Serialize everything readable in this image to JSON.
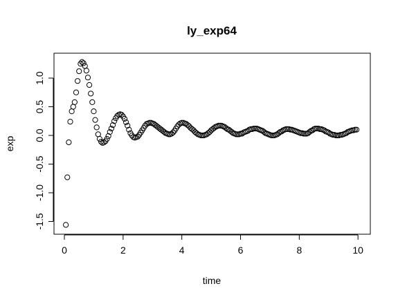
{
  "chart_data": {
    "type": "scatter",
    "title": "ly_exp64",
    "x_label": "time",
    "y_label": "exp",
    "xlim": [
      -0.354,
      10.42
    ],
    "ylim": [
      -1.723,
      1.434
    ],
    "xticks": [
      0,
      2,
      4,
      6,
      8,
      10
    ],
    "yticks": [
      -1.5,
      {
        "value": -1,
        "label": "-1.0"
      },
      -0.5,
      {
        "value": 0,
        "label": "0.0"
      },
      0.5,
      {
        "value": 1,
        "label": "1.0"
      }
    ],
    "grid": false,
    "series": [
      {
        "color": "#000000",
        "x": [
          0.05,
          0.1,
          0.15,
          0.2,
          0.25,
          0.3,
          0.35,
          0.4,
          0.45,
          0.5,
          0.55,
          0.6,
          0.65,
          0.7,
          0.75,
          0.8,
          0.85,
          0.9,
          0.95,
          1.0,
          1.05,
          1.1,
          1.15,
          1.2,
          1.25,
          1.3,
          1.35,
          1.4,
          1.45,
          1.5,
          1.55,
          1.6,
          1.65,
          1.7,
          1.75,
          1.8,
          1.85,
          1.9,
          1.95,
          2.0,
          2.05,
          2.1,
          2.15,
          2.2,
          2.25,
          2.3,
          2.35,
          2.4,
          2.45,
          2.5,
          2.55,
          2.6,
          2.65,
          2.7,
          2.75,
          2.8,
          2.85,
          2.9,
          2.95,
          3.0,
          3.05,
          3.1,
          3.15,
          3.2,
          3.25,
          3.3,
          3.35,
          3.4,
          3.45,
          3.5,
          3.55,
          3.6,
          3.65,
          3.7,
          3.75,
          3.8,
          3.85,
          3.9,
          3.95,
          4.0,
          4.05,
          4.1,
          4.15,
          4.2,
          4.25,
          4.3,
          4.35,
          4.4,
          4.45,
          4.5,
          4.55,
          4.6,
          4.65,
          4.7,
          4.75,
          4.8,
          4.85,
          4.9,
          4.95,
          5.0,
          5.05,
          5.1,
          5.15,
          5.2,
          5.25,
          5.3,
          5.35,
          5.4,
          5.45,
          5.5,
          5.55,
          5.6,
          5.65,
          5.7,
          5.75,
          5.8,
          5.85,
          5.9,
          5.95,
          6.0,
          6.05,
          6.1,
          6.15,
          6.2,
          6.25,
          6.3,
          6.35,
          6.4,
          6.45,
          6.5,
          6.55,
          6.6,
          6.65,
          6.7,
          6.75,
          6.8,
          6.85,
          6.9,
          6.95,
          7.0,
          7.05,
          7.1,
          7.15,
          7.2,
          7.25,
          7.3,
          7.35,
          7.4,
          7.45,
          7.5,
          7.55,
          7.6,
          7.65,
          7.7,
          7.75,
          7.8,
          7.85,
          7.9,
          7.95,
          8.0,
          8.05,
          8.1,
          8.15,
          8.2,
          8.25,
          8.3,
          8.35,
          8.4,
          8.45,
          8.5,
          8.55,
          8.6,
          8.65,
          8.7,
          8.75,
          8.8,
          8.85,
          8.9,
          8.95,
          9.0,
          9.05,
          9.1,
          9.15,
          9.2,
          9.25,
          9.3,
          9.35,
          9.4,
          9.45,
          9.5,
          9.55,
          9.6,
          9.65,
          9.7,
          9.75,
          9.8,
          9.85,
          9.9,
          9.95
        ],
        "values": [
          -1.56,
          -0.73,
          -0.12,
          0.24,
          0.42,
          0.5,
          0.58,
          0.75,
          0.95,
          1.12,
          1.25,
          1.28,
          1.26,
          1.21,
          1.13,
          1.01,
          0.88,
          0.73,
          0.58,
          0.42,
          0.27,
          0.14,
          0.02,
          -0.06,
          -0.11,
          -0.13,
          -0.12,
          -0.1,
          -0.06,
          -0.01,
          0.06,
          0.12,
          0.18,
          0.25,
          0.3,
          0.34,
          0.36,
          0.37,
          0.36,
          0.33,
          0.29,
          0.23,
          0.17,
          0.1,
          0.04,
          0,
          -0.03,
          -0.04,
          -0.03,
          -0.02,
          0.01,
          0.05,
          0.09,
          0.13,
          0.17,
          0.2,
          0.21,
          0.22,
          0.22,
          0.21,
          0.2,
          0.18,
          0.16,
          0.14,
          0.12,
          0.1,
          0.08,
          0.06,
          0.04,
          0.03,
          0.02,
          0.02,
          0.03,
          0.05,
          0.08,
          0.12,
          0.16,
          0.19,
          0.21,
          0.22,
          0.22,
          0.21,
          0.2,
          0.18,
          0.16,
          0.13,
          0.11,
          0.09,
          0.06,
          0.04,
          0.02,
          0.01,
          0,
          0,
          0,
          0.01,
          0.02,
          0.04,
          0.06,
          0.09,
          0.11,
          0.13,
          0.15,
          0.16,
          0.17,
          0.17,
          0.17,
          0.16,
          0.15,
          0.13,
          0.11,
          0.1,
          0.08,
          0.06,
          0.04,
          0.03,
          0.02,
          0.02,
          0.02,
          0.03,
          0.03,
          0.05,
          0.06,
          0.07,
          0.08,
          0.1,
          0.11,
          0.11,
          0.12,
          0.12,
          0.12,
          0.11,
          0.1,
          0.09,
          0.08,
          0.06,
          0.04,
          0.03,
          0.02,
          0.01,
          0,
          0,
          0,
          0.01,
          0.02,
          0.04,
          0.06,
          0.07,
          0.09,
          0.1,
          0.11,
          0.11,
          0.11,
          0.1,
          0.1,
          0.09,
          0.08,
          0.07,
          0.06,
          0.05,
          0.04,
          0.04,
          0.03,
          0.03,
          0.03,
          0.04,
          0.06,
          0.08,
          0.09,
          0.11,
          0.12,
          0.12,
          0.12,
          0.11,
          0.11,
          0.1,
          0.09,
          0.07,
          0.06,
          0.05,
          0.03,
          0.02,
          0.01,
          0.01,
          0,
          0,
          0,
          0.01,
          0.01,
          0.02,
          0.03,
          0.04,
          0.06,
          0.07,
          0.08,
          0.09,
          0.09,
          0.1,
          0.1
        ]
      }
    ]
  }
}
